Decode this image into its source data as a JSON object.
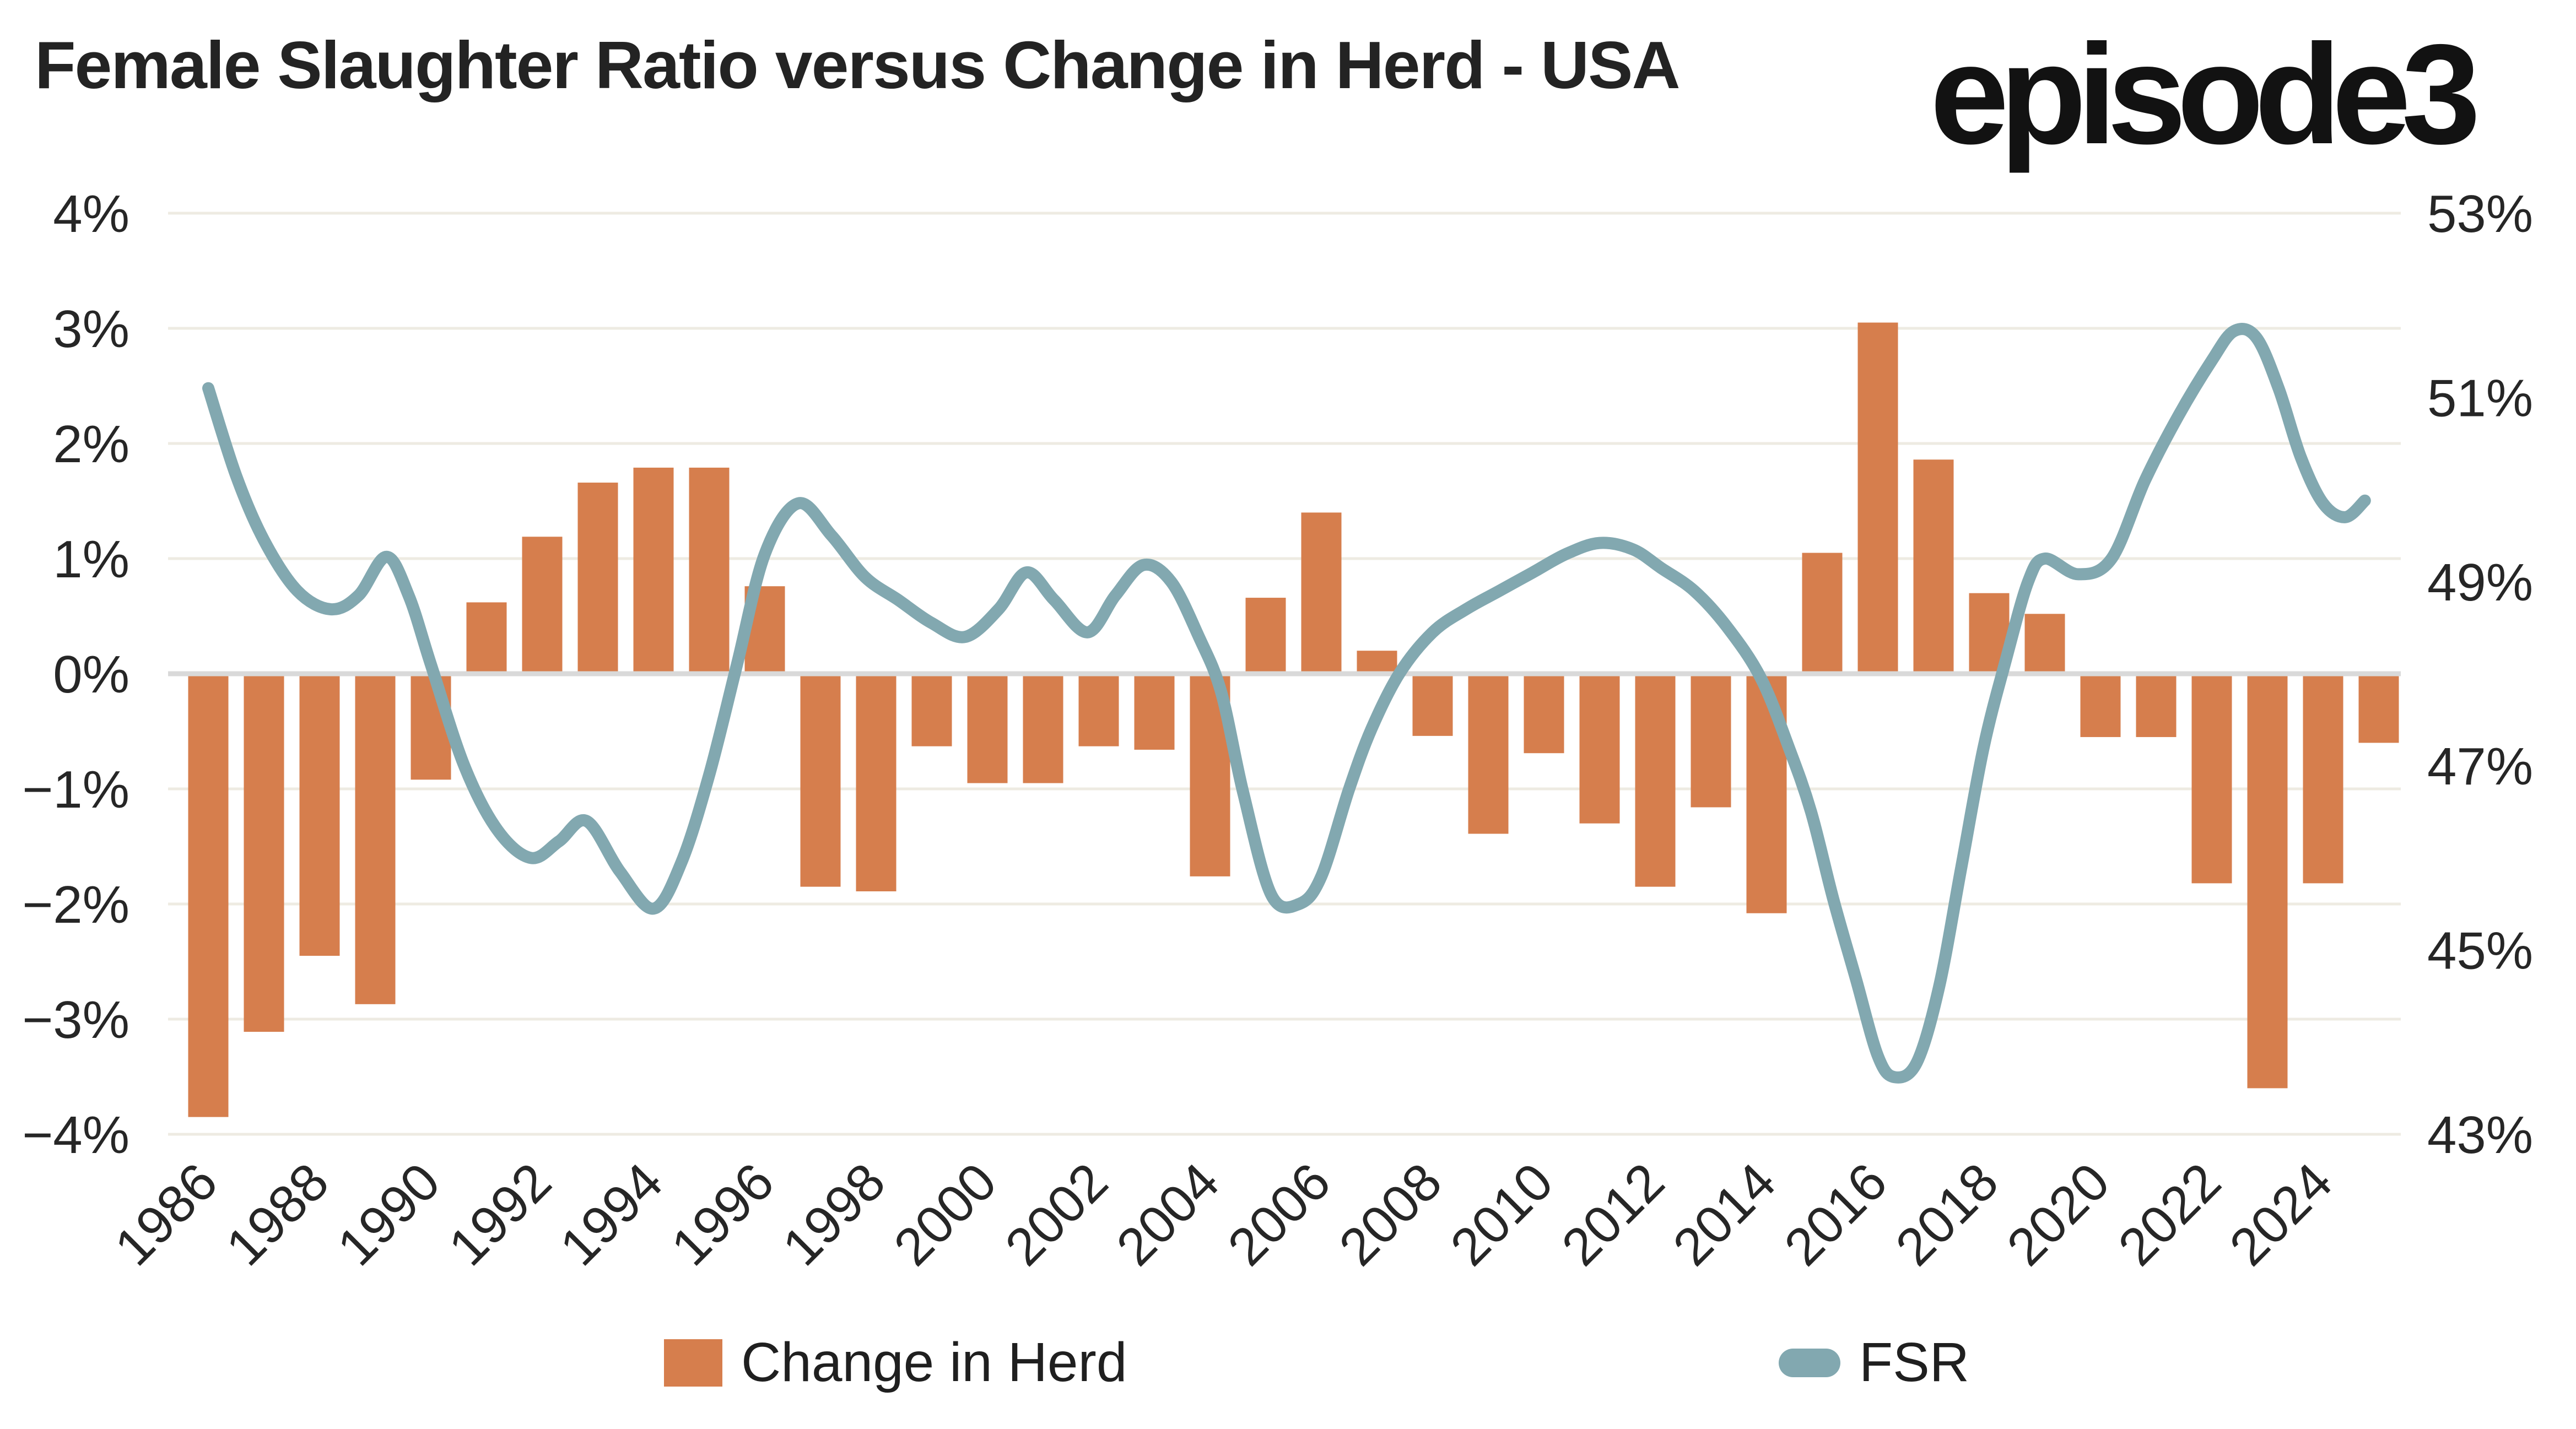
{
  "header": {
    "title": "Female Slaughter Ratio versus Change in Herd - USA",
    "logo": "episode3"
  },
  "legend": {
    "items": [
      {
        "label": "Change in Herd",
        "swatch": "orange-square",
        "color": "#D67E4D"
      },
      {
        "label": "FSR",
        "swatch": "teal-line",
        "color": "#82A8B0"
      }
    ]
  },
  "chart_data": {
    "type": "combo-bar-line",
    "title": "Female Slaughter Ratio versus Change in Herd - USA",
    "grid": {
      "color": "#EEEBE2",
      "zero_line_color": "#D9D9D9",
      "background": "#FFFFFF"
    },
    "text_color": "#262626",
    "left_axis": {
      "series": "Change in Herd",
      "unit": "%",
      "min": -4,
      "max": 4,
      "tick_values": [
        4,
        3,
        2,
        1,
        0,
        -1,
        -2,
        -3,
        -4
      ],
      "tick_labels": [
        "4%",
        "3%",
        "2%",
        "1%",
        "0%",
        "−1%",
        "−2%",
        "−3%",
        "−4%"
      ]
    },
    "right_axis": {
      "series": "FSR",
      "unit": "%",
      "min": 43,
      "max": 53,
      "tick_values": [
        53,
        51,
        49,
        47,
        45,
        43
      ],
      "tick_labels": [
        "53%",
        "51%",
        "49%",
        "47%",
        "45%",
        "43%"
      ]
    },
    "x_axis": {
      "tick_labels": [
        "1986",
        "1988",
        "1990",
        "1992",
        "1994",
        "1996",
        "1998",
        "2000",
        "2002",
        "2004",
        "2006",
        "2008",
        "2010",
        "2012",
        "2014",
        "2016",
        "2018",
        "2020",
        "2022",
        "2024"
      ],
      "tick_years": [
        1986,
        1988,
        1990,
        1992,
        1994,
        1996,
        1998,
        2000,
        2002,
        2004,
        2006,
        2008,
        2010,
        2012,
        2014,
        2016,
        2018,
        2020,
        2022,
        2024
      ]
    },
    "series": [
      {
        "name": "Change in Herd",
        "type": "bar",
        "axis": "left",
        "color": "#D67E4D",
        "years": [
          1986,
          1987,
          1988,
          1989,
          1990,
          1991,
          1992,
          1993,
          1994,
          1995,
          1996,
          1997,
          1998,
          1999,
          2000,
          2001,
          2002,
          2003,
          2004,
          2005,
          2006,
          2007,
          2008,
          2009,
          2010,
          2011,
          2012,
          2013,
          2014,
          2015,
          2016,
          2017,
          2018,
          2019,
          2020,
          2021,
          2022,
          2023,
          2024,
          2025
        ],
        "values": [
          -3.85,
          -3.11,
          -2.45,
          -2.87,
          -0.92,
          0.62,
          1.19,
          1.66,
          1.79,
          1.79,
          0.76,
          -1.85,
          -1.89,
          -0.63,
          -0.95,
          -0.95,
          -0.63,
          -0.66,
          -1.76,
          0.66,
          1.4,
          0.2,
          -0.54,
          -1.39,
          -0.69,
          -1.3,
          -1.85,
          -1.16,
          -2.08,
          1.05,
          3.05,
          1.86,
          0.7,
          0.52,
          -0.55,
          -0.55,
          -1.82,
          -3.6,
          -1.82,
          -0.6
        ]
      },
      {
        "name": "FSR",
        "type": "line",
        "axis": "right",
        "color": "#82A8B0",
        "stroke_width": 22,
        "points": [
          [
            1986.0,
            51.1
          ],
          [
            1986.5,
            50.15
          ],
          [
            1987.0,
            49.45
          ],
          [
            1987.6,
            48.9
          ],
          [
            1988.2,
            48.7
          ],
          [
            1988.7,
            48.85
          ],
          [
            1989.2,
            49.27
          ],
          [
            1989.6,
            48.85
          ],
          [
            1990.0,
            48.1
          ],
          [
            1990.6,
            47.0
          ],
          [
            1991.2,
            46.3
          ],
          [
            1991.8,
            46.0
          ],
          [
            1992.3,
            46.18
          ],
          [
            1992.8,
            46.4
          ],
          [
            1993.4,
            45.85
          ],
          [
            1994.0,
            45.45
          ],
          [
            1994.5,
            45.95
          ],
          [
            1995.0,
            46.9
          ],
          [
            1995.5,
            48.1
          ],
          [
            1996.0,
            49.3
          ],
          [
            1996.6,
            49.85
          ],
          [
            1997.2,
            49.5
          ],
          [
            1997.8,
            49.05
          ],
          [
            1998.4,
            48.8
          ],
          [
            1999.0,
            48.55
          ],
          [
            1999.6,
            48.4
          ],
          [
            2000.2,
            48.7
          ],
          [
            2000.7,
            49.1
          ],
          [
            2001.2,
            48.8
          ],
          [
            2001.8,
            48.45
          ],
          [
            2002.3,
            48.85
          ],
          [
            2002.8,
            49.18
          ],
          [
            2003.3,
            49.0
          ],
          [
            2003.8,
            48.4
          ],
          [
            2004.2,
            47.8
          ],
          [
            2004.6,
            46.7
          ],
          [
            2005.1,
            45.6
          ],
          [
            2005.6,
            45.5
          ],
          [
            2006.0,
            45.8
          ],
          [
            2006.5,
            46.75
          ],
          [
            2006.9,
            47.4
          ],
          [
            2007.4,
            48.0
          ],
          [
            2008.0,
            48.45
          ],
          [
            2008.6,
            48.7
          ],
          [
            2009.2,
            48.9
          ],
          [
            2009.8,
            49.1
          ],
          [
            2010.4,
            49.3
          ],
          [
            2011.0,
            49.42
          ],
          [
            2011.6,
            49.35
          ],
          [
            2012.1,
            49.15
          ],
          [
            2012.7,
            48.9
          ],
          [
            2013.3,
            48.5
          ],
          [
            2013.9,
            47.95
          ],
          [
            2014.4,
            47.2
          ],
          [
            2014.8,
            46.5
          ],
          [
            2015.2,
            45.55
          ],
          [
            2015.6,
            44.7
          ],
          [
            2016.0,
            43.85
          ],
          [
            2016.3,
            43.62
          ],
          [
            2016.7,
            43.78
          ],
          [
            2017.1,
            44.6
          ],
          [
            2017.5,
            45.9
          ],
          [
            2017.9,
            47.2
          ],
          [
            2018.3,
            48.15
          ],
          [
            2018.7,
            49.0
          ],
          [
            2019.0,
            49.25
          ],
          [
            2019.6,
            49.08
          ],
          [
            2020.2,
            49.25
          ],
          [
            2020.8,
            50.1
          ],
          [
            2021.4,
            50.8
          ],
          [
            2022.0,
            51.4
          ],
          [
            2022.4,
            51.72
          ],
          [
            2022.8,
            51.65
          ],
          [
            2023.2,
            51.1
          ],
          [
            2023.6,
            50.35
          ],
          [
            2024.0,
            49.85
          ],
          [
            2024.4,
            49.7
          ],
          [
            2024.75,
            49.88
          ]
        ]
      }
    ]
  }
}
